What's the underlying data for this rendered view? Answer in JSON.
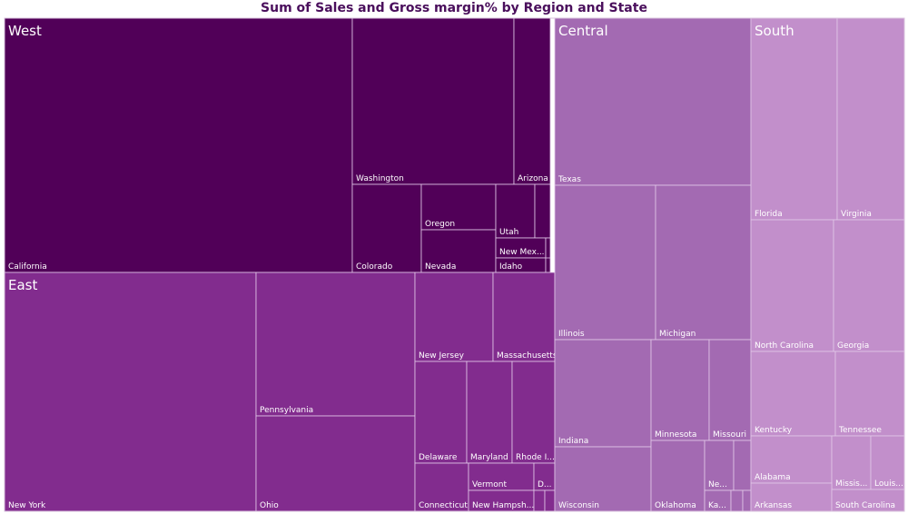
{
  "chart_data": {
    "type": "treemap",
    "title": "Sum of Sales and Gross margin% by Region and State",
    "regions": [
      {
        "name": "West",
        "color": "#510058",
        "states": [
          {
            "name": "California",
            "label": "California"
          },
          {
            "name": "Washington",
            "label": "Washington"
          },
          {
            "name": "Arizona",
            "label": "Arizona"
          },
          {
            "name": "Colorado",
            "label": "Colorado"
          },
          {
            "name": "Oregon",
            "label": "Oregon"
          },
          {
            "name": "Nevada",
            "label": "Nevada"
          },
          {
            "name": "Utah",
            "label": "Utah"
          },
          {
            "name": "West state (unlabeled)",
            "label": ""
          },
          {
            "name": "New Mexico",
            "label": "New Mex..."
          },
          {
            "name": "West state (unlabeled)",
            "label": ""
          },
          {
            "name": "Idaho",
            "label": "Idaho"
          },
          {
            "name": "West state (unlabeled)",
            "label": ""
          }
        ]
      },
      {
        "name": "East",
        "color": "#822c8e",
        "states": [
          {
            "name": "New York",
            "label": "New York"
          },
          {
            "name": "Pennsylvania",
            "label": "Pennsylvania"
          },
          {
            "name": "Ohio",
            "label": "Ohio"
          },
          {
            "name": "New Jersey",
            "label": "New Jersey"
          },
          {
            "name": "Massachusetts",
            "label": "Massachusetts"
          },
          {
            "name": "Delaware",
            "label": "Delaware"
          },
          {
            "name": "Maryland",
            "label": "Maryland"
          },
          {
            "name": "Rhode Island",
            "label": "Rhode I..."
          },
          {
            "name": "Connecticut",
            "label": "Connecticut"
          },
          {
            "name": "Vermont",
            "label": "Vermont"
          },
          {
            "name": "D...",
            "label": "D..."
          },
          {
            "name": "New Hampshire",
            "label": "New Hampsh..."
          },
          {
            "name": "East state (unlabeled)",
            "label": ""
          },
          {
            "name": "East state (unlabeled)",
            "label": ""
          }
        ]
      },
      {
        "name": "Central",
        "color": "#a36ab2",
        "states": [
          {
            "name": "Texas",
            "label": "Texas"
          },
          {
            "name": "Illinois",
            "label": "Illinois"
          },
          {
            "name": "Michigan",
            "label": "Michigan"
          },
          {
            "name": "Indiana",
            "label": "Indiana"
          },
          {
            "name": "Wisconsin",
            "label": "Wisconsin"
          },
          {
            "name": "Minnesota",
            "label": "Minnesota"
          },
          {
            "name": "Missouri",
            "label": "Missouri"
          },
          {
            "name": "Oklahoma",
            "label": "Oklahoma"
          },
          {
            "name": "Ne...",
            "label": "Ne..."
          },
          {
            "name": "Ka...",
            "label": "Ka..."
          },
          {
            "name": "Central state (unlabeled)",
            "label": ""
          },
          {
            "name": "Central state (unlabeled)",
            "label": ""
          },
          {
            "name": "Central state (unlabeled)",
            "label": ""
          }
        ]
      },
      {
        "name": "South",
        "color": "#c28fcb",
        "states": [
          {
            "name": "Florida",
            "label": "Florida"
          },
          {
            "name": "Virginia",
            "label": "Virginia"
          },
          {
            "name": "North Carolina",
            "label": "North Carolina"
          },
          {
            "name": "Georgia",
            "label": "Georgia"
          },
          {
            "name": "Kentucky",
            "label": "Kentucky"
          },
          {
            "name": "Tennessee",
            "label": "Tennessee"
          },
          {
            "name": "Alabama",
            "label": "Alabama"
          },
          {
            "name": "Mississippi",
            "label": "Missis..."
          },
          {
            "name": "Louisiana",
            "label": "Louis..."
          },
          {
            "name": "Arkansas",
            "label": "Arkansas"
          },
          {
            "name": "South Carolina",
            "label": "South Carolina"
          }
        ]
      }
    ]
  }
}
